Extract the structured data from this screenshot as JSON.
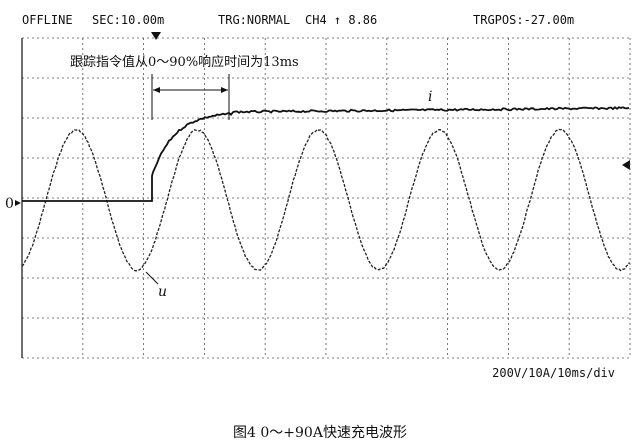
{
  "header": {
    "mode": "OFFLINE",
    "sec": "SEC:10.00m",
    "trigger": "TRG:NORMAL",
    "channel": "CH4 ↑ 8.86",
    "trigger_position": "TRGPOS:-27.00m"
  },
  "annotation": "跟踪指令值从0～90%响应时间为13ms",
  "zero_label": "0",
  "current_label": "i",
  "voltage_label": "u",
  "scale": "200V/10A/10ms/div",
  "caption": "图4   0～+90A快速充电波形"
}
